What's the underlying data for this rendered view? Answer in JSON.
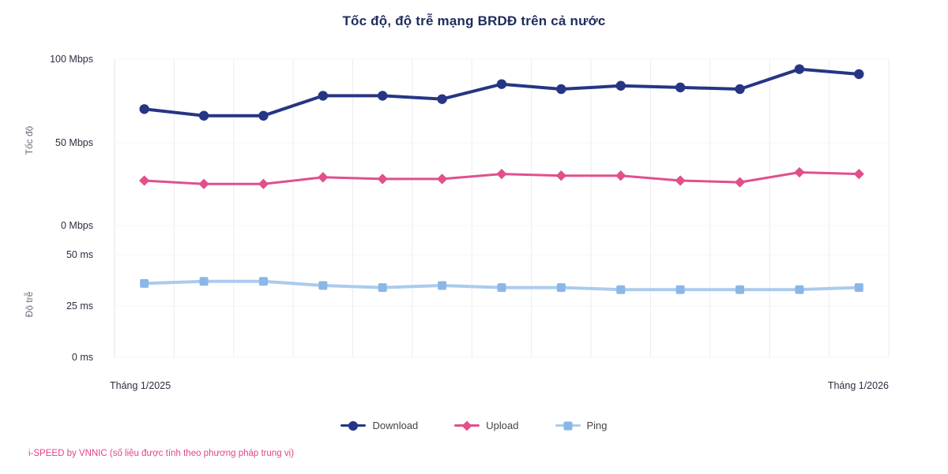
{
  "title": "Tốc độ, độ trễ mạng BRDĐ trên cả nước",
  "footer": "i-SPEED by VNNIC (số liệu được tính theo phương pháp trung vị)",
  "x_axis": {
    "start_label": "Tháng 1/2025",
    "end_label": "Tháng 1/2026"
  },
  "legend": [
    {
      "label": "Download",
      "marker": "circle",
      "color": "#263584"
    },
    {
      "label": "Upload",
      "marker": "diamond",
      "color": "#e0508c"
    },
    {
      "label": "Ping",
      "marker": "square",
      "color": "#8ab7e6",
      "line_color": "#abcbee"
    }
  ],
  "chart_data": [
    {
      "type": "line",
      "panel": "speed",
      "title": "Tốc độ, độ trễ mạng BRDĐ trên cả nước",
      "ylabel": "Tốc độ",
      "yticks": [
        "0 Mbps",
        "50 Mbps",
        "100 Mbps"
      ],
      "ylim": [
        0,
        100
      ],
      "x_start_label": "Tháng 1/2025",
      "x_end_label": "Tháng 1/2026",
      "x_points": 13,
      "grid": "vertical",
      "legend_position": "bottom",
      "series": [
        {
          "name": "Download",
          "marker": "circle",
          "color": "#263584",
          "values": [
            70,
            66,
            66,
            78,
            78,
            76,
            85,
            82,
            84,
            83,
            82,
            94,
            91
          ]
        },
        {
          "name": "Upload",
          "marker": "diamond",
          "color": "#e0508c",
          "values": [
            27,
            25,
            25,
            29,
            28,
            28,
            31,
            30,
            30,
            27,
            26,
            32,
            31
          ]
        }
      ]
    },
    {
      "type": "line",
      "panel": "latency",
      "ylabel": "Độ trễ",
      "yticks": [
        "0 ms",
        "25 ms",
        "50 ms"
      ],
      "ylim": [
        0,
        55
      ],
      "x_points": 13,
      "series": [
        {
          "name": "Ping",
          "marker": "square",
          "color": "#8ab7e6",
          "line_color": "#abcbee",
          "values": [
            36,
            37,
            37,
            35,
            34,
            35,
            34,
            34,
            33,
            33,
            33,
            33,
            34
          ]
        }
      ]
    }
  ]
}
